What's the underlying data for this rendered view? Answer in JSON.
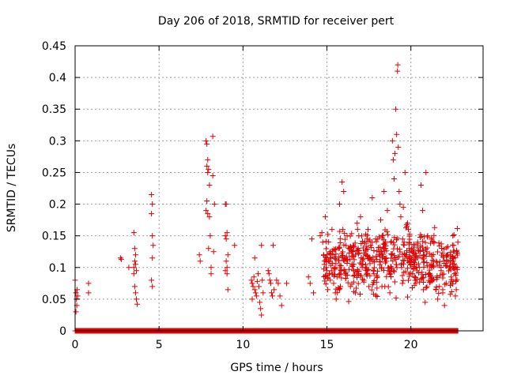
{
  "chart_data": {
    "type": "scatter",
    "title": "Day 206 of 2018, SRMTID for receiver pert",
    "xlabel": "GPS time / hours",
    "ylabel": "SRMTID / TECUs",
    "xlim": [
      0,
      24.3
    ],
    "ylim": [
      0,
      0.45
    ],
    "x_ticks": [
      0,
      5,
      10,
      15,
      20
    ],
    "x_tick_labels": [
      "0",
      "5",
      "10",
      "15",
      "20"
    ],
    "y_ticks": [
      0,
      0.05,
      0.1,
      0.15,
      0.2,
      0.25,
      0.3,
      0.35,
      0.4,
      0.45
    ],
    "y_tick_labels": [
      "0",
      "0.05",
      "0.1",
      "0.15",
      "0.2",
      "0.25",
      "0.3",
      "0.35",
      "0.4",
      "0.45"
    ],
    "grid": true,
    "marker": "plus",
    "series_color": "#e00000",
    "baseline": {
      "y": 0,
      "x_start": 0,
      "x_end": 22.8,
      "step": 0.025
    },
    "points": [
      [
        0.0,
        0.08
      ],
      [
        0.05,
        0.06
      ],
      [
        0.08,
        0.05
      ],
      [
        0.1,
        0.04
      ],
      [
        0.12,
        0.065
      ],
      [
        0.15,
        0.055
      ],
      [
        0.05,
        0.03
      ],
      [
        0.8,
        0.075
      ],
      [
        0.8,
        0.06
      ],
      [
        2.7,
        0.115
      ],
      [
        2.75,
        0.113
      ],
      [
        3.2,
        0.1
      ],
      [
        3.5,
        0.155
      ],
      [
        3.55,
        0.13
      ],
      [
        3.6,
        0.12
      ],
      [
        3.55,
        0.11
      ],
      [
        3.6,
        0.105
      ],
      [
        3.65,
        0.095
      ],
      [
        3.5,
        0.09
      ],
      [
        3.55,
        0.07
      ],
      [
        3.6,
        0.06
      ],
      [
        3.65,
        0.05
      ],
      [
        3.7,
        0.042
      ],
      [
        3.5,
        0.1
      ],
      [
        4.55,
        0.215
      ],
      [
        4.6,
        0.2
      ],
      [
        4.55,
        0.185
      ],
      [
        4.6,
        0.15
      ],
      [
        4.65,
        0.135
      ],
      [
        4.6,
        0.115
      ],
      [
        4.55,
        0.08
      ],
      [
        4.6,
        0.07
      ],
      [
        7.4,
        0.12
      ],
      [
        7.45,
        0.11
      ],
      [
        7.8,
        0.3
      ],
      [
        7.85,
        0.295
      ],
      [
        7.9,
        0.27
      ],
      [
        7.85,
        0.26
      ],
      [
        7.95,
        0.255
      ],
      [
        7.9,
        0.25
      ],
      [
        8.0,
        0.23
      ],
      [
        7.85,
        0.205
      ],
      [
        7.8,
        0.19
      ],
      [
        7.9,
        0.185
      ],
      [
        8.0,
        0.18
      ],
      [
        8.05,
        0.15
      ],
      [
        7.95,
        0.13
      ],
      [
        8.1,
        0.1
      ],
      [
        8.1,
        0.09
      ],
      [
        8.2,
        0.307
      ],
      [
        8.2,
        0.245
      ],
      [
        8.3,
        0.2
      ],
      [
        8.25,
        0.125
      ],
      [
        8.95,
        0.2
      ],
      [
        9.0,
        0.2
      ],
      [
        9.05,
        0.155
      ],
      [
        8.95,
        0.15
      ],
      [
        9.0,
        0.145
      ],
      [
        9.1,
        0.12
      ],
      [
        9.0,
        0.11
      ],
      [
        9.05,
        0.1
      ],
      [
        8.95,
        0.095
      ],
      [
        9.05,
        0.09
      ],
      [
        9.1,
        0.065
      ],
      [
        9.5,
        0.135
      ],
      [
        10.5,
        0.08
      ],
      [
        10.55,
        0.075
      ],
      [
        10.6,
        0.07
      ],
      [
        10.65,
        0.085
      ],
      [
        10.7,
        0.065
      ],
      [
        10.75,
        0.06
      ],
      [
        10.8,
        0.055
      ],
      [
        10.85,
        0.078
      ],
      [
        10.9,
        0.09
      ],
      [
        10.95,
        0.07
      ],
      [
        11.0,
        0.045
      ],
      [
        11.05,
        0.035
      ],
      [
        11.1,
        0.025
      ],
      [
        11.15,
        0.08
      ],
      [
        11.2,
        0.06
      ],
      [
        11.1,
        0.135
      ],
      [
        10.7,
        0.115
      ],
      [
        10.55,
        0.05
      ],
      [
        11.5,
        0.095
      ],
      [
        11.55,
        0.09
      ],
      [
        11.6,
        0.08
      ],
      [
        11.65,
        0.075
      ],
      [
        11.7,
        0.06
      ],
      [
        11.75,
        0.055
      ],
      [
        11.8,
        0.135
      ],
      [
        11.85,
        0.065
      ],
      [
        12.0,
        0.08
      ],
      [
        12.1,
        0.075
      ],
      [
        12.2,
        0.055
      ],
      [
        12.3,
        0.04
      ],
      [
        12.6,
        0.075
      ],
      [
        13.9,
        0.085
      ],
      [
        14.0,
        0.075
      ],
      [
        14.1,
        0.145
      ],
      [
        14.2,
        0.06
      ],
      [
        14.6,
        0.15
      ],
      [
        14.7,
        0.155
      ],
      [
        14.75,
        0.14
      ],
      [
        14.8,
        0.12
      ],
      [
        14.85,
        0.11
      ],
      [
        14.9,
        0.18
      ],
      [
        14.95,
        0.1
      ],
      [
        15.0,
        0.095
      ],
      [
        15.05,
        0.065
      ],
      [
        15.1,
        0.11
      ],
      [
        15.15,
        0.09
      ],
      [
        15.2,
        0.08
      ],
      [
        15.3,
        0.16
      ],
      [
        15.35,
        0.12
      ],
      [
        15.4,
        0.075
      ],
      [
        15.45,
        0.1
      ],
      [
        15.5,
        0.06
      ],
      [
        15.55,
        0.05
      ],
      [
        15.6,
        0.085
      ],
      [
        15.7,
        0.13
      ],
      [
        15.75,
        0.2
      ],
      [
        15.8,
        0.07
      ],
      [
        15.85,
        0.095
      ],
      [
        15.9,
        0.235
      ],
      [
        15.95,
        0.16
      ],
      [
        16.0,
        0.22
      ],
      [
        16.05,
        0.11
      ],
      [
        16.1,
        0.09
      ],
      [
        16.2,
        0.15
      ],
      [
        16.3,
        0.13
      ],
      [
        16.4,
        0.07
      ],
      [
        16.5,
        0.125
      ],
      [
        16.6,
        0.105
      ],
      [
        16.7,
        0.06
      ],
      [
        16.8,
        0.17
      ],
      [
        16.85,
        0.09
      ],
      [
        16.9,
        0.15
      ],
      [
        17.0,
        0.18
      ],
      [
        17.05,
        0.115
      ],
      [
        17.1,
        0.1
      ],
      [
        17.2,
        0.08
      ],
      [
        17.25,
        0.14
      ],
      [
        17.3,
        0.12
      ],
      [
        17.4,
        0.095
      ],
      [
        17.45,
        0.16
      ],
      [
        17.5,
        0.07
      ],
      [
        17.6,
        0.135
      ],
      [
        17.7,
        0.21
      ],
      [
        17.75,
        0.11
      ],
      [
        17.8,
        0.09
      ],
      [
        17.9,
        0.145
      ],
      [
        18.0,
        0.085
      ],
      [
        18.1,
        0.125
      ],
      [
        18.2,
        0.175
      ],
      [
        18.25,
        0.1
      ],
      [
        18.3,
        0.15
      ],
      [
        18.4,
        0.22
      ],
      [
        18.45,
        0.07
      ],
      [
        18.5,
        0.13
      ],
      [
        18.55,
        0.115
      ],
      [
        18.6,
        0.19
      ],
      [
        18.7,
        0.095
      ],
      [
        18.75,
        0.06
      ],
      [
        18.8,
        0.14
      ],
      [
        18.85,
        0.12
      ],
      [
        18.9,
        0.3
      ],
      [
        18.95,
        0.27
      ],
      [
        19.0,
        0.24
      ],
      [
        19.05,
        0.28
      ],
      [
        19.1,
        0.35
      ],
      [
        19.15,
        0.31
      ],
      [
        19.2,
        0.41
      ],
      [
        19.22,
        0.42
      ],
      [
        19.25,
        0.29
      ],
      [
        19.3,
        0.22
      ],
      [
        19.35,
        0.2
      ],
      [
        19.4,
        0.18
      ],
      [
        19.45,
        0.1
      ],
      [
        19.5,
        0.075
      ],
      [
        19.55,
        0.195
      ],
      [
        19.6,
        0.14
      ],
      [
        19.65,
        0.25
      ],
      [
        19.7,
        0.12
      ],
      [
        19.8,
        0.17
      ],
      [
        19.85,
        0.16
      ],
      [
        19.9,
        0.13
      ],
      [
        20.0,
        0.11
      ],
      [
        20.1,
        0.09
      ],
      [
        20.2,
        0.085
      ],
      [
        20.3,
        0.075
      ],
      [
        20.4,
        0.14
      ],
      [
        20.5,
        0.1
      ],
      [
        20.6,
        0.23
      ],
      [
        20.7,
        0.19
      ],
      [
        20.75,
        0.065
      ],
      [
        20.8,
        0.12
      ],
      [
        20.85,
        0.045
      ],
      [
        20.9,
        0.25
      ],
      [
        21.0,
        0.15
      ],
      [
        21.1,
        0.09
      ],
      [
        21.2,
        0.105
      ],
      [
        21.3,
        0.08
      ],
      [
        21.5,
        0.065
      ],
      [
        21.6,
        0.05
      ],
      [
        21.7,
        0.07
      ],
      [
        21.8,
        0.095
      ],
      [
        21.9,
        0.06
      ],
      [
        22.0,
        0.04
      ],
      [
        22.1,
        0.075
      ],
      [
        22.2,
        0.12
      ],
      [
        22.3,
        0.1
      ],
      [
        22.4,
        0.085
      ],
      [
        22.5,
        0.15
      ],
      [
        22.55,
        0.135
      ],
      [
        22.6,
        0.09
      ],
      [
        22.65,
        0.055
      ],
      [
        22.7,
        0.065
      ],
      [
        22.75,
        0.1
      ],
      [
        22.8,
        0.14
      ]
    ],
    "dense_band": {
      "x_start": 14.8,
      "x_end": 22.8,
      "y_min": 0.04,
      "y_max": 0.2,
      "count": 520
    }
  }
}
